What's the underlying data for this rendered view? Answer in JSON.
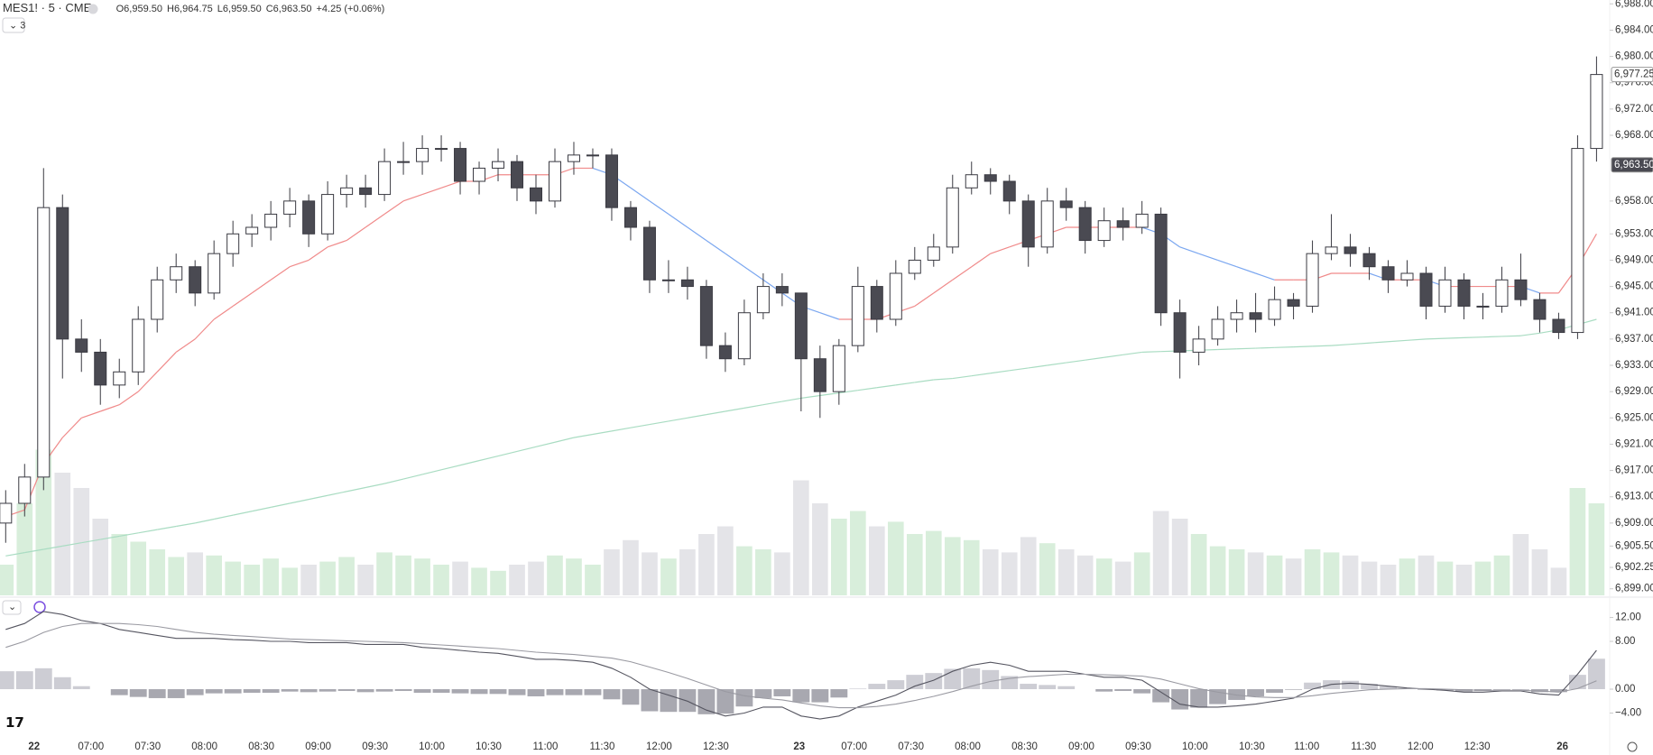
{
  "header": {
    "symbol": "MES1! · 5 · CME",
    "ohlc": [
      {
        "label": "O",
        "value": "6,959.50"
      },
      {
        "label": "H",
        "value": "6,964.75"
      },
      {
        "label": "L",
        "value": "6,959.50"
      },
      {
        "label": "C",
        "value": "6,963.50"
      }
    ],
    "change": "+4.25 (+0.06%)",
    "indicator_count": "3"
  },
  "chart_data": [
    {
      "type": "candlestick",
      "open": [
        6909,
        6912,
        6916,
        6957,
        6937,
        6935,
        6930,
        6932,
        6940,
        6946,
        6948,
        6944,
        6950,
        6953,
        6954,
        6956,
        6958,
        6953,
        6959,
        6960,
        6959,
        6964,
        6964,
        6966,
        6966,
        6961,
        6963,
        6964,
        6960,
        6958,
        6964,
        6965,
        6965,
        6957,
        6954,
        6946,
        6946,
        6945,
        6936,
        6934,
        6941,
        6945,
        6944,
        6934,
        6929,
        6936,
        6945,
        6940,
        6947,
        6949,
        6951,
        6960,
        6962,
        6961,
        6958,
        6951,
        6958,
        6957,
        6952,
        6955,
        6954,
        6956,
        6941,
        6935,
        6937,
        6940,
        6941,
        6940,
        6943,
        6942,
        6950,
        6951,
        6950,
        6948,
        6946,
        6947,
        6942,
        6946,
        6942,
        6942,
        6946,
        6943,
        6940,
        6938,
        6966
      ],
      "high": [
        6914,
        6918,
        6963,
        6959,
        6940,
        6937,
        6934,
        6942,
        6948,
        6950,
        6949,
        6952,
        6955,
        6956,
        6958,
        6960,
        6959,
        6961,
        6962,
        6962,
        6966,
        6967,
        6968,
        6968,
        6967,
        6964,
        6966,
        6965,
        6962,
        6966,
        6967,
        6966,
        6966,
        6958,
        6955,
        6949,
        6948,
        6946,
        6938,
        6943,
        6947,
        6947,
        6944,
        6936,
        6937,
        6948,
        6946,
        6949,
        6951,
        6953,
        6962,
        6964,
        6963,
        6962,
        6959,
        6960,
        6960,
        6958,
        6957,
        6957,
        6958,
        6957,
        6943,
        6939,
        6942,
        6943,
        6944,
        6945,
        6944,
        6952,
        6956,
        6953,
        6951,
        6949,
        6949,
        6948,
        6948,
        6947,
        6944,
        6948,
        6950,
        6944,
        6941,
        6968,
        6980
      ],
      "low": [
        6906,
        6910,
        6914,
        6931,
        6932,
        6927,
        6928,
        6930,
        6938,
        6944,
        6942,
        6943,
        6948,
        6951,
        6952,
        6954,
        6951,
        6952,
        6957,
        6957,
        6958,
        6962,
        6962,
        6964,
        6959,
        6959,
        6961,
        6958,
        6956,
        6957,
        6962,
        6963,
        6955,
        6952,
        6944,
        6944,
        6943,
        6934,
        6932,
        6933,
        6940,
        6942,
        6926,
        6925,
        6927,
        6935,
        6938,
        6939,
        6946,
        6948,
        6950,
        6959,
        6959,
        6956,
        6948,
        6950,
        6955,
        6950,
        6951,
        6952,
        6953,
        6939,
        6931,
        6933,
        6936,
        6938,
        6938,
        6939,
        6940,
        6941,
        6949,
        6948,
        6946,
        6944,
        6945,
        6940,
        6941,
        6940,
        6940,
        6941,
        6942,
        6938,
        6937,
        6937,
        6964
      ],
      "close": [
        6912,
        6916,
        6957,
        6937,
        6935,
        6930,
        6932,
        6940,
        6946,
        6948,
        6944,
        6950,
        6953,
        6954,
        6956,
        6958,
        6953,
        6959,
        6960,
        6959,
        6964,
        6964,
        6966,
        6966,
        6961,
        6963,
        6964,
        6960,
        6958,
        6964,
        6965,
        6965,
        6957,
        6954,
        6946,
        6946,
        6945,
        6936,
        6934,
        6941,
        6945,
        6944,
        6934,
        6929,
        6936,
        6945,
        6940,
        6947,
        6949,
        6951,
        6960,
        6962,
        6961,
        6958,
        6951,
        6958,
        6957,
        6952,
        6955,
        6954,
        6956,
        6941,
        6935,
        6937,
        6940,
        6941,
        6940,
        6943,
        6942,
        6950,
        6951,
        6950,
        6948,
        6946,
        6947,
        6942,
        6946,
        6942,
        6942,
        6946,
        6943,
        6940,
        6938,
        6966,
        6977.25
      ],
      "volume": [
        20,
        60,
        95,
        80,
        70,
        50,
        40,
        35,
        30,
        25,
        28,
        26,
        22,
        20,
        24,
        18,
        20,
        22,
        25,
        20,
        28,
        26,
        24,
        20,
        22,
        18,
        16,
        20,
        22,
        26,
        24,
        20,
        30,
        36,
        28,
        24,
        30,
        40,
        45,
        32,
        30,
        28,
        75,
        60,
        50,
        55,
        45,
        48,
        40,
        42,
        38,
        36,
        30,
        28,
        38,
        34,
        30,
        26,
        24,
        22,
        28,
        55,
        50,
        40,
        32,
        30,
        28,
        26,
        24,
        30,
        28,
        26,
        22,
        20,
        24,
        26,
        22,
        20,
        22,
        26,
        40,
        30,
        18,
        70,
        60
      ],
      "volume_lim": [
        0,
        100
      ],
      "up_color": "#ffffff",
      "down_color": "#4a4a52",
      "outline_color": "#3a3a42",
      "volume_up_color": "#d8eedb",
      "volume_down_color": "#e4e4e8",
      "series": [
        {
          "color": "#f08a8a",
          "down_color": "#7ba7f0",
          "values": [
            6910,
            6911,
            6918,
            6922,
            6925,
            6926,
            6927,
            6929,
            6932,
            6935,
            6937,
            6940,
            6942,
            6944,
            6946,
            6948,
            6949,
            6951,
            6952,
            6954,
            6956,
            6958,
            6959,
            6960,
            6961,
            6961,
            6962,
            6962,
            6962,
            6962,
            6963,
            6963,
            6962,
            6960,
            6958,
            6956,
            6954,
            6952,
            6950,
            6948,
            6946,
            6944,
            6942,
            6941,
            6940,
            6940,
            6940,
            6941,
            6942,
            6944,
            6946,
            6948,
            6950,
            6951,
            6952,
            6953,
            6954,
            6954,
            6954,
            6954,
            6954,
            6953,
            6951,
            6950,
            6949,
            6948,
            6947,
            6946,
            6946,
            6946,
            6947,
            6947,
            6947,
            6946,
            6946,
            6946,
            6945,
            6945,
            6945,
            6945,
            6945,
            6944,
            6944,
            6948,
            6953
          ]
        },
        {
          "color": "#a9dcc2",
          "values": [
            6904,
            6904.5,
            6905,
            6905.5,
            6906,
            6906.5,
            6907,
            6907.5,
            6908,
            6908.5,
            6909,
            6909.6,
            6910.2,
            6910.8,
            6911.4,
            6912,
            6912.6,
            6913.2,
            6913.8,
            6914.4,
            6915,
            6915.7,
            6916.4,
            6917.1,
            6917.8,
            6918.5,
            6919.2,
            6919.9,
            6920.6,
            6921.3,
            6922,
            6922.5,
            6923,
            6923.5,
            6924,
            6924.5,
            6925,
            6925.5,
            6926,
            6926.5,
            6927,
            6927.5,
            6928,
            6928.4,
            6928.8,
            6929.2,
            6929.6,
            6930,
            6930.4,
            6930.8,
            6931,
            6931.4,
            6931.8,
            6932.2,
            6932.6,
            6933,
            6933.4,
            6933.8,
            6934.2,
            6934.6,
            6935,
            6935.1,
            6935.2,
            6935.3,
            6935.4,
            6935.5,
            6935.6,
            6935.7,
            6935.8,
            6935.9,
            6936,
            6936.2,
            6936.4,
            6936.6,
            6936.8,
            6937,
            6937.1,
            6937.2,
            6937.3,
            6937.4,
            6937.5,
            6937.9,
            6938.4,
            6939.2,
            6940
          ]
        }
      ],
      "xlim": [
        -0.3,
        84.6
      ],
      "xticks": [
        {
          "value": 1.5,
          "label": "22"
        },
        {
          "value": 4.5,
          "label": "07:00"
        },
        {
          "value": 7.5,
          "label": "07:30"
        },
        {
          "value": 10.5,
          "label": "08:00"
        },
        {
          "value": 13.5,
          "label": "08:30"
        },
        {
          "value": 16.5,
          "label": "09:00"
        },
        {
          "value": 19.5,
          "label": "09:30"
        },
        {
          "value": 22.5,
          "label": "10:00"
        },
        {
          "value": 25.5,
          "label": "10:30"
        },
        {
          "value": 28.5,
          "label": "11:00"
        },
        {
          "value": 31.5,
          "label": "11:30"
        },
        {
          "value": 34.5,
          "label": "12:00"
        },
        {
          "value": 37.5,
          "label": "12:30"
        },
        {
          "value": 41.9,
          "label": "23"
        },
        {
          "value": 44.8,
          "label": "07:00"
        },
        {
          "value": 47.8,
          "label": "07:30"
        },
        {
          "value": 50.8,
          "label": "08:00"
        },
        {
          "value": 53.8,
          "label": "08:30"
        },
        {
          "value": 56.8,
          "label": "09:00"
        },
        {
          "value": 59.8,
          "label": "09:30"
        },
        {
          "value": 62.8,
          "label": "10:00"
        },
        {
          "value": 65.8,
          "label": "10:30"
        },
        {
          "value": 68.7,
          "label": "11:00"
        },
        {
          "value": 71.7,
          "label": "11:30"
        },
        {
          "value": 74.7,
          "label": "12:00"
        },
        {
          "value": 77.7,
          "label": "12:30"
        },
        {
          "value": 82.2,
          "label": "26"
        }
      ],
      "ylim": [
        6898,
        6989
      ],
      "yticks": [
        {
          "value": 6988,
          "label": "6,988.00"
        },
        {
          "value": 6984,
          "label": "6,984.00"
        },
        {
          "value": 6980,
          "label": "6,980.00"
        },
        {
          "value": 6976,
          "label": "6,976.00"
        },
        {
          "value": 6972,
          "label": "6,972.00"
        },
        {
          "value": 6968,
          "label": "6,968.00"
        },
        {
          "value": 6958,
          "label": "6,958.00"
        },
        {
          "value": 6953,
          "label": "6,953.00"
        },
        {
          "value": 6949,
          "label": "6,949.00"
        },
        {
          "value": 6945,
          "label": "6,945.00"
        },
        {
          "value": 6941,
          "label": "6,941.00"
        },
        {
          "value": 6937,
          "label": "6,937.00"
        },
        {
          "value": 6933,
          "label": "6,933.00"
        },
        {
          "value": 6929,
          "label": "6,929.00"
        },
        {
          "value": 6925,
          "label": "6,925.00"
        },
        {
          "value": 6921,
          "label": "6,921.00"
        },
        {
          "value": 6917,
          "label": "6,917.00"
        },
        {
          "value": 6913,
          "label": "6,913.00"
        },
        {
          "value": 6909,
          "label": "6,909.00"
        },
        {
          "value": 6905.5,
          "label": "6,905.50"
        },
        {
          "value": 6902.25,
          "label": "6,902.25"
        },
        {
          "value": 6899,
          "label": "6,899.00"
        }
      ],
      "price_labels": [
        {
          "value": 6977.25,
          "label": "6,977.25",
          "color": "#ffffff",
          "text_color": "#333333"
        },
        {
          "value": 6963.5,
          "label": "6,963.50",
          "color": "#4a4a52",
          "text_color": "#ffffff"
        }
      ],
      "grid": false
    },
    {
      "type": "macd",
      "series": [
        {
          "color": "#555560",
          "values": [
            10,
            11,
            13,
            12.5,
            11.5,
            11,
            10,
            9.5,
            9,
            8.5,
            8.5,
            8.5,
            8.3,
            8.2,
            8,
            8,
            7.8,
            7.8,
            7.8,
            7.5,
            7.5,
            7.5,
            7,
            6.8,
            6.5,
            6.2,
            6,
            5.5,
            5,
            5,
            4.8,
            4.5,
            3.5,
            2,
            0,
            -1,
            -2,
            -3.5,
            -4.5,
            -4,
            -3,
            -3,
            -4.5,
            -5,
            -4.5,
            -3,
            -2,
            -1,
            0.5,
            1.5,
            3,
            4,
            4.5,
            4,
            3,
            3,
            3,
            2.5,
            2,
            2,
            1.5,
            -0.5,
            -2.5,
            -3,
            -3,
            -2.8,
            -2.5,
            -2,
            -1.5,
            0,
            0.8,
            1,
            0.8,
            0.5,
            0.2,
            0,
            -0.2,
            -0.5,
            -0.5,
            -0.3,
            -0.3,
            -0.8,
            -1,
            2.5,
            6.5
          ]
        },
        {
          "color": "#9a9aa2",
          "values": [
            7,
            8,
            9.5,
            10.5,
            11,
            11,
            11,
            10.8,
            10.5,
            10,
            9.5,
            9.2,
            9,
            8.8,
            8.6,
            8.4,
            8.3,
            8.2,
            8.1,
            8,
            7.9,
            7.8,
            7.6,
            7.4,
            7.2,
            7,
            6.8,
            6.5,
            6.2,
            6,
            5.8,
            5.5,
            5.2,
            4.6,
            3.7,
            2.8,
            1.8,
            0.7,
            -0.4,
            -1.1,
            -1.5,
            -1.8,
            -2.3,
            -2.8,
            -3.1,
            -3.1,
            -2.9,
            -2.5,
            -1.9,
            -1.2,
            -0.4,
            0.5,
            1.3,
            1.8,
            2.1,
            2.3,
            2.5,
            2.5,
            2.4,
            2.3,
            2.2,
            1.7,
            0.9,
            0.1,
            -0.5,
            -1,
            -1.3,
            -1.4,
            -1.4,
            -1.1,
            -0.7,
            -0.4,
            -0.1,
            0,
            0.1,
            0.1,
            0,
            -0.1,
            -0.2,
            -0.2,
            -0.2,
            -0.3,
            -0.5,
            0.1,
            1.4
          ]
        }
      ],
      "histogram": [
        3,
        3,
        3.5,
        2,
        0.5,
        0,
        -1,
        -1.3,
        -1.5,
        -1.5,
        -1,
        -0.7,
        -0.7,
        -0.6,
        -0.6,
        -0.4,
        -0.5,
        -0.4,
        -0.3,
        -0.5,
        -0.4,
        -0.3,
        -0.6,
        -0.6,
        -0.7,
        -0.8,
        -0.8,
        -1,
        -1.2,
        -1,
        -1,
        -1,
        -1.7,
        -2.6,
        -3.7,
        -3.8,
        -3.8,
        -4.2,
        -4.1,
        -2.9,
        -1.5,
        -1.2,
        -2.2,
        -2.2,
        -1.4,
        0.1,
        0.9,
        1.5,
        2.4,
        2.7,
        3.4,
        3.5,
        3.2,
        2.2,
        0.9,
        0.7,
        0.5,
        0,
        -0.4,
        -0.3,
        -0.7,
        -2.2,
        -3.4,
        -3.1,
        -2.5,
        -1.8,
        -1.2,
        -0.6,
        -0.1,
        1.1,
        1.5,
        1.4,
        0.9,
        0.5,
        0.1,
        -0.1,
        -0.2,
        -0.4,
        -0.3,
        -0.1,
        -0.1,
        -0.5,
        -0.5,
        2.4,
        5.1
      ],
      "hist_up_color": "#cdcdd4",
      "hist_down_color": "#a8a8b0",
      "ylim": [
        -8,
        14.5
      ],
      "yticks": [
        {
          "value": 12,
          "label": "12.00"
        },
        {
          "value": 8,
          "label": "8.00"
        },
        {
          "value": 0,
          "label": "0.00"
        },
        {
          "value": -4,
          "label": "−4.00"
        }
      ]
    }
  ]
}
